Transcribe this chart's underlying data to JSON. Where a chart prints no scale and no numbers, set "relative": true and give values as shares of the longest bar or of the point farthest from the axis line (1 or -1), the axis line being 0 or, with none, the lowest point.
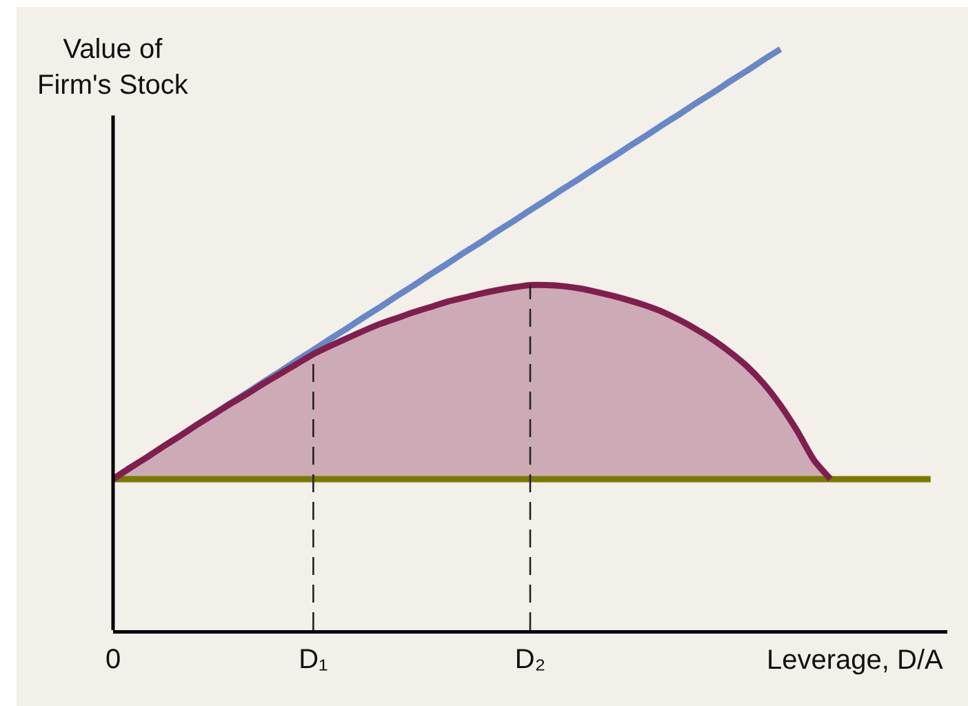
{
  "chart_data": {
    "type": "line",
    "ylabel": "Value of Firm's Stock",
    "xlabel": "Leverage, D/A",
    "relative": true,
    "grid": false,
    "marker": "none",
    "categories": [
      "0",
      null,
      null,
      null,
      null,
      null,
      null,
      null,
      null,
      null,
      null,
      null,
      "D₁",
      null,
      null,
      null,
      null,
      null,
      null,
      null,
      null,
      null,
      null,
      null,
      null,
      "D₂",
      null,
      null,
      null,
      null,
      null,
      null,
      null,
      null,
      null,
      null,
      null,
      null,
      null,
      null,
      null,
      null,
      null,
      null,
      null,
      null,
      null,
      null,
      null,
      null,
      null
    ],
    "series": [
      {
        "color": "#6787c7",
        "values": [
          0.26,
          0.279,
          0.297,
          0.316,
          0.334,
          0.353,
          0.371,
          0.39,
          0.408,
          0.427,
          0.445,
          0.464,
          0.482,
          0.501,
          0.519,
          0.538,
          0.556,
          0.575,
          0.593,
          0.612,
          0.63,
          0.649,
          0.667,
          0.686,
          0.704,
          0.723,
          0.741,
          0.76,
          0.778,
          0.797,
          0.815,
          0.834,
          0.852,
          0.871,
          0.889,
          0.908,
          0.926,
          0.945,
          0.963,
          0.982,
          1,
          null,
          null,
          null,
          null,
          null,
          null,
          null,
          null,
          null,
          null
        ]
      },
      {
        "color": "#7b7800",
        "values": [
          0.26,
          0.26,
          0.26,
          0.26,
          0.26,
          0.26,
          0.26,
          0.26,
          0.26,
          0.26,
          0.26,
          0.26,
          0.26,
          0.26,
          0.26,
          0.26,
          0.26,
          0.26,
          0.26,
          0.26,
          0.26,
          0.26,
          0.26,
          0.26,
          0.26,
          0.26,
          0.26,
          0.26,
          0.26,
          0.26,
          0.26,
          0.26,
          0.26,
          0.26,
          0.26,
          0.26,
          0.26,
          0.26,
          0.26,
          0.26,
          0.26,
          0.26,
          0.26,
          0.26,
          0.26,
          0.26,
          0.26,
          0.26,
          0.26,
          0.26,
          null
        ]
      },
      {
        "color": "#801f4e",
        "values": [
          0.26,
          0.279,
          0.297,
          0.316,
          0.334,
          0.353,
          0.371,
          0.389,
          0.406,
          0.424,
          0.441,
          0.458,
          0.475,
          0.489,
          0.502,
          0.515,
          0.527,
          0.537,
          0.547,
          0.556,
          0.565,
          0.572,
          0.579,
          0.585,
          0.59,
          0.594,
          0.594,
          0.592,
          0.588,
          0.582,
          0.575,
          0.567,
          0.558,
          0.547,
          0.533,
          0.517,
          0.499,
          0.478,
          0.454,
          0.424,
          0.387,
          0.343,
          0.293,
          0.26,
          null,
          null,
          null,
          null,
          null,
          null,
          null
        ],
        "lower": [
          0.26,
          0.26,
          0.26,
          0.26,
          0.26,
          0.26,
          0.26,
          0.26,
          0.26,
          0.26,
          0.26,
          0.26,
          0.26,
          0.26,
          0.26,
          0.26,
          0.26,
          0.26,
          0.26,
          0.26,
          0.26,
          0.26,
          0.26,
          0.26,
          0.26,
          0.26,
          0.26,
          0.26,
          0.26,
          0.26,
          0.26,
          0.26,
          0.26,
          0.26,
          0.26,
          0.26,
          0.26,
          0.26,
          0.26,
          0.26,
          0.26,
          0.26,
          0.26,
          0.26,
          null,
          null,
          null,
          null,
          null,
          null,
          null
        ],
        "upper": [
          0.26,
          0.279,
          0.297,
          0.316,
          0.334,
          0.353,
          0.371,
          0.389,
          0.406,
          0.424,
          0.441,
          0.458,
          0.475,
          0.489,
          0.502,
          0.515,
          0.527,
          0.537,
          0.547,
          0.556,
          0.565,
          0.572,
          0.579,
          0.585,
          0.59,
          0.594,
          0.594,
          0.592,
          0.588,
          0.582,
          0.575,
          0.567,
          0.558,
          0.547,
          0.533,
          0.517,
          0.499,
          0.478,
          0.454,
          0.424,
          0.387,
          0.343,
          0.293,
          0.26,
          null,
          null,
          null,
          null,
          null,
          null,
          null
        ]
      }
    ],
    "ref_lines": [
      {
        "axis": "x",
        "value": "D₁",
        "line_style": "dashed",
        "color": "#222222"
      },
      {
        "axis": "x",
        "value": "D₂",
        "line_style": "dashed",
        "color": "#222222"
      }
    ]
  }
}
